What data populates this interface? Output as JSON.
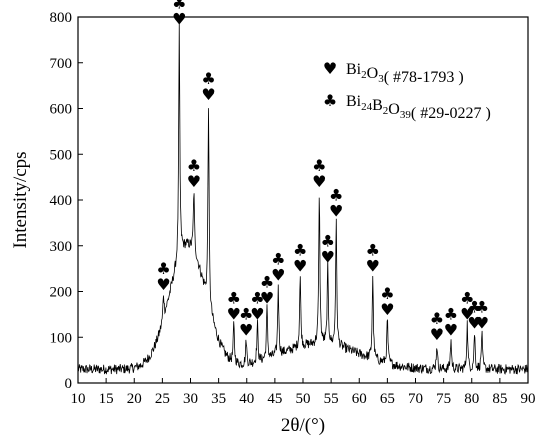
{
  "chart_data": {
    "type": "line",
    "xlabel": "2θ/(°)",
    "ylabel": "Intensity/cps",
    "xlim": [
      10,
      90
    ],
    "ylim": [
      0,
      800
    ],
    "x_ticks": [
      10,
      15,
      20,
      25,
      30,
      35,
      40,
      45,
      50,
      55,
      60,
      65,
      70,
      75,
      80,
      85,
      90
    ],
    "y_ticks": [
      0,
      100,
      200,
      300,
      400,
      500,
      600,
      700,
      800
    ],
    "grid": false,
    "legend_position": "top-right",
    "series": [
      {
        "label_parts": [
          {
            "text": "Bi",
            "sub": false
          },
          {
            "text": "2",
            "sub": true
          },
          {
            "text": "O",
            "sub": false
          },
          {
            "text": "3",
            "sub": true
          },
          {
            "text": "( #78-1793 )",
            "sub": false
          }
        ],
        "marker_symbol": "♥",
        "marker_name": "heart-icon"
      },
      {
        "label_parts": [
          {
            "text": "Bi",
            "sub": false
          },
          {
            "text": "24",
            "sub": true
          },
          {
            "text": "B",
            "sub": false
          },
          {
            "text": "2",
            "sub": true
          },
          {
            "text": "O",
            "sub": false
          },
          {
            "text": "39",
            "sub": true
          },
          {
            "text": "( #29-0227 )",
            "sub": false
          }
        ],
        "marker_symbol": "♣",
        "marker_name": "club-icon"
      }
    ],
    "baseline": 30,
    "noise": 22,
    "halos": [
      {
        "center": 29.5,
        "width": 3.2,
        "height": 270
      },
      {
        "center": 53.0,
        "width": 7.0,
        "height": 55
      }
    ],
    "peaks": [
      {
        "x": 25.2,
        "y": 195,
        "labels": [
          "club",
          "heart"
        ]
      },
      {
        "x": 28.0,
        "y": 775,
        "labels": [
          "club",
          "heart"
        ]
      },
      {
        "x": 30.6,
        "y": 420,
        "labels": [
          "club",
          "heart"
        ]
      },
      {
        "x": 33.2,
        "y": 610,
        "labels": [
          "club",
          "heart"
        ]
      },
      {
        "x": 37.7,
        "y": 130,
        "labels": [
          "club",
          "heart"
        ]
      },
      {
        "x": 39.9,
        "y": 95,
        "labels": [
          "club",
          "heart"
        ]
      },
      {
        "x": 41.9,
        "y": 130,
        "labels": [
          "club",
          "heart"
        ]
      },
      {
        "x": 43.6,
        "y": 165,
        "labels": [
          "club",
          "heart"
        ]
      },
      {
        "x": 45.6,
        "y": 215,
        "labels": [
          "club",
          "heart"
        ]
      },
      {
        "x": 49.5,
        "y": 235,
        "labels": [
          "club",
          "heart"
        ]
      },
      {
        "x": 52.9,
        "y": 420,
        "labels": [
          "club",
          "heart"
        ]
      },
      {
        "x": 54.4,
        "y": 255,
        "labels": [
          "club",
          "heart"
        ]
      },
      {
        "x": 55.9,
        "y": 355,
        "labels": [
          "club",
          "heart"
        ]
      },
      {
        "x": 62.4,
        "y": 235,
        "labels": [
          "club",
          "heart"
        ]
      },
      {
        "x": 65.0,
        "y": 140,
        "labels": [
          "club",
          "heart"
        ]
      },
      {
        "x": 73.8,
        "y": 85,
        "labels": [
          "club",
          "heart"
        ]
      },
      {
        "x": 76.3,
        "y": 95,
        "labels": [
          "club",
          "heart"
        ]
      },
      {
        "x": 79.2,
        "y": 130,
        "labels": [
          "club",
          "heart"
        ]
      },
      {
        "x": 80.5,
        "y": 110,
        "labels": [
          "club",
          "heart"
        ]
      },
      {
        "x": 81.8,
        "y": 110,
        "labels": [
          "club",
          "heart"
        ]
      }
    ]
  }
}
